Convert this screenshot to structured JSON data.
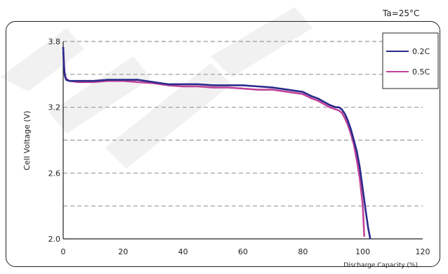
{
  "annotation": "Ta=25°C",
  "colors": {
    "series_0": "#2a2a8c",
    "series_1": "#c0449a",
    "grid": "#999999"
  },
  "chart_data": {
    "type": "line",
    "title": "",
    "xlabel": "Discharge Capacity (%)",
    "ylabel": "Cell Voltage (V)",
    "xlim": [
      0,
      120
    ],
    "ylim": [
      2.0,
      3.8
    ],
    "x_ticks": [
      "0",
      "20",
      "40",
      "60",
      "80",
      "100",
      "120"
    ],
    "y_ticks": [
      "2.0",
      "2.6",
      "3.2",
      "3.8"
    ],
    "grid": "horizontal dashed at 0.3 V steps",
    "legend_position": "top-right",
    "series": [
      {
        "name": "0.2C",
        "x": [
          0,
          0.3,
          0.6,
          1,
          2,
          5,
          10,
          15,
          20,
          25,
          30,
          35,
          40,
          45,
          50,
          55,
          60,
          65,
          70,
          75,
          80,
          83,
          85,
          87,
          89,
          91,
          92,
          93,
          94,
          95,
          96,
          97,
          98,
          99,
          100,
          101,
          101.8,
          102.5
        ],
        "y": [
          3.75,
          3.55,
          3.48,
          3.45,
          3.44,
          3.44,
          3.44,
          3.45,
          3.45,
          3.45,
          3.43,
          3.41,
          3.41,
          3.41,
          3.4,
          3.4,
          3.4,
          3.39,
          3.38,
          3.36,
          3.34,
          3.3,
          3.28,
          3.25,
          3.22,
          3.2,
          3.2,
          3.18,
          3.14,
          3.08,
          3.0,
          2.9,
          2.8,
          2.65,
          2.45,
          2.25,
          2.1,
          2.0
        ]
      },
      {
        "name": "0.5C",
        "x": [
          0,
          0.5,
          1,
          2,
          5,
          10,
          15,
          20,
          25,
          30,
          35,
          40,
          45,
          50,
          55,
          60,
          65,
          70,
          75,
          80,
          83,
          85,
          87,
          89,
          91,
          92,
          93,
          94,
          95,
          96,
          97,
          98,
          99,
          100,
          100.5
        ],
        "y": [
          3.7,
          3.5,
          3.46,
          3.44,
          3.43,
          3.43,
          3.44,
          3.44,
          3.43,
          3.42,
          3.4,
          3.39,
          3.39,
          3.38,
          3.38,
          3.37,
          3.36,
          3.36,
          3.34,
          3.32,
          3.28,
          3.26,
          3.23,
          3.2,
          3.18,
          3.17,
          3.15,
          3.1,
          3.04,
          2.96,
          2.86,
          2.72,
          2.55,
          2.3,
          2.02
        ]
      }
    ]
  }
}
